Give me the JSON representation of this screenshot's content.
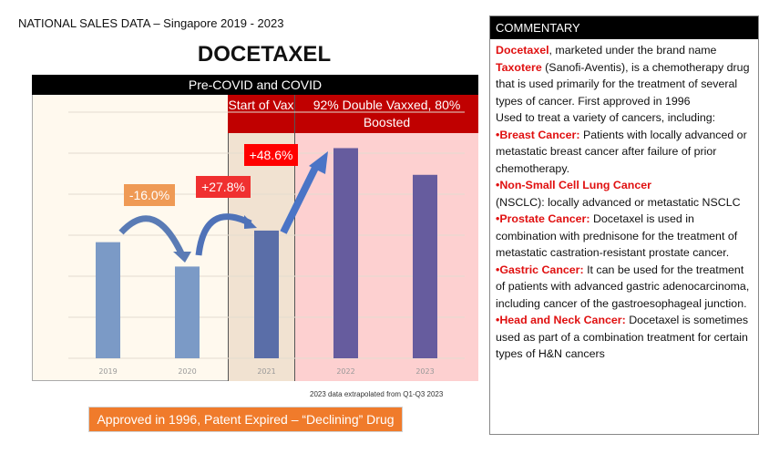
{
  "header": {
    "title": "NATIONAL SALES DATA – Singapore  2019 - 2023",
    "drug": "DOCETAXEL"
  },
  "chart_data": {
    "type": "bar",
    "title": "Pre-COVID and COVID",
    "categories": [
      "2019",
      "2020",
      "2021",
      "2022",
      "2023"
    ],
    "values": [
      100,
      79,
      110,
      181,
      158
    ],
    "ylim": [
      0,
      212
    ],
    "grid": true,
    "xlabel": "",
    "ylabel": "",
    "bar_colors": [
      "#7b9ac6",
      "#7b9ac6",
      "#5a6ea8",
      "#665c9e",
      "#665c9e"
    ],
    "zones": [
      {
        "label": "Start of Vax"
      },
      {
        "label": "92% Double Vaxxed, 80% Boosted"
      }
    ],
    "annotations": [
      "-16.0%",
      "+27.8%",
      "+48.6%"
    ],
    "footnote": "2023 data extrapolated from Q1-Q3 2023"
  },
  "banner": "Approved in 1996, Patent Expired – “Declining” Drug",
  "commentary": {
    "heading": "COMMENTARY",
    "intro_name": "Docetaxel",
    "intro_1": ", marketed under the brand name ",
    "brand": "Taxotere",
    "intro_2": " (Sanofi-Aventis), is a chemotherapy drug that is used primarily for the treatment of several types of cancer. First approved in 1996",
    "used_for": "Used to treat a variety of cancers, including:",
    "items": [
      {
        "label": "•Breast Cancer: ",
        "text": "Patients with locally advanced or metastatic breast cancer after failure of prior chemotherapy."
      },
      {
        "label": "•Non-Small Cell Lung Cancer",
        "text": "(NSCLC):  locally advanced or metastatic NSCLC"
      },
      {
        "label": "•Prostate Cancer: ",
        "text": "Docetaxel is used in combination with prednisone for the treatment of metastatic castration-resistant prostate cancer."
      },
      {
        "label": "•Gastric Cancer: ",
        "text": "It can be used for the treatment of patients with advanced gastric adenocarcinoma, including cancer of the gastroesophageal junction."
      },
      {
        "label": "•Head and Neck Cancer: ",
        "text": "Docetaxel is sometimes used as part of a combination treatment for certain types of H&N cancers"
      }
    ]
  }
}
